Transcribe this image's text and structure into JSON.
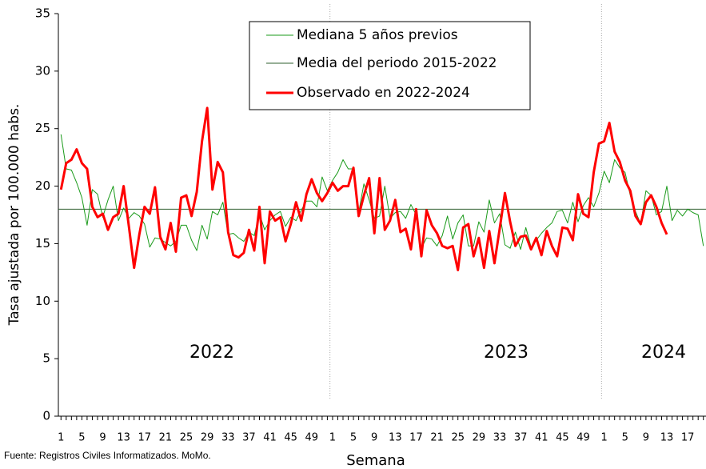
{
  "chart_data": {
    "type": "line",
    "ylabel": "Tasa ajustada por 100.000 habs.",
    "xlabel": "Semana",
    "source": "Fuente: Registros Civiles Informatizados. MoMo.",
    "year_labels": [
      "2022",
      "2023",
      "2024"
    ],
    "ylim": [
      0,
      35
    ],
    "yticks": [
      0,
      5,
      10,
      15,
      20,
      25,
      30,
      35
    ],
    "categories": [
      1,
      null,
      null,
      null,
      5,
      null,
      null,
      null,
      9,
      null,
      null,
      null,
      13,
      null,
      null,
      null,
      17,
      null,
      null,
      null,
      21,
      null,
      null,
      null,
      25,
      null,
      null,
      null,
      29,
      null,
      null,
      null,
      33,
      null,
      null,
      null,
      37,
      null,
      null,
      null,
      41,
      null,
      null,
      null,
      45,
      null,
      null,
      null,
      49,
      null,
      null,
      null,
      1,
      null,
      null,
      null,
      5,
      null,
      null,
      null,
      9,
      null,
      null,
      null,
      13,
      null,
      null,
      null,
      17,
      null,
      null,
      null,
      21,
      null,
      null,
      null,
      25,
      null,
      null,
      null,
      29,
      null,
      null,
      null,
      33,
      null,
      null,
      null,
      37,
      null,
      null,
      null,
      41,
      null,
      null,
      null,
      45,
      null,
      null,
      null,
      49,
      null,
      null,
      null,
      1,
      null,
      null,
      null,
      5,
      null,
      null,
      null,
      9,
      null,
      null,
      null,
      13,
      null,
      null,
      null,
      17,
      null,
      null,
      null
    ],
    "reference_line": {
      "name": "Media del periodo 2015-2022",
      "value": 18,
      "color": "#2f5f2f"
    },
    "series": [
      {
        "name": "Mediana 5 años previos",
        "color": "#1a9a1a",
        "width": 1,
        "values": [
          24.5,
          21.5,
          21.4,
          20.3,
          19.0,
          16.6,
          19.7,
          19.3,
          17.3,
          18.8,
          20.0,
          17.0,
          18.1,
          17.2,
          17.7,
          17.4,
          16.7,
          14.7,
          15.5,
          15.4,
          15.1,
          14.8,
          15.2,
          16.6,
          16.6,
          15.3,
          14.4,
          16.6,
          15.4,
          17.8,
          17.5,
          18.6,
          15.8,
          15.9,
          15.5,
          15.2,
          16.0,
          15.7,
          17.6,
          16.2,
          17.0,
          17.5,
          17.8,
          16.5,
          17.3,
          17.0,
          17.9,
          18.7,
          18.7,
          18.2,
          20.8,
          19.6,
          20.5,
          21.2,
          22.3,
          21.5,
          21.5,
          17.7,
          20.2,
          18.8,
          17.2,
          17.4,
          20.0,
          17.2,
          17.7,
          17.8,
          17.2,
          18.4,
          17.5,
          14.6,
          15.5,
          15.4,
          14.8,
          15.7,
          17.4,
          15.4,
          16.8,
          17.5,
          14.8,
          14.8,
          16.9,
          16.0,
          18.8,
          16.8,
          17.6,
          14.9,
          14.6,
          16.0,
          14.5,
          16.4,
          14.7,
          15.3,
          15.9,
          16.4,
          16.8,
          17.8,
          17.9,
          16.8,
          18.6,
          16.9,
          18.3,
          19.0,
          18.2,
          19.4,
          21.3,
          20.3,
          22.3,
          21.6,
          21.2,
          19.2,
          17.8,
          16.7,
          19.6,
          19.2,
          17.5,
          17.8,
          20.0,
          17.0,
          17.9,
          17.4,
          18.0,
          17.7,
          17.5,
          14.8
        ]
      },
      {
        "name": "Observado en 2022-2024",
        "color": "#ff0000",
        "width": 3,
        "values": [
          19.7,
          22.0,
          22.3,
          23.2,
          22.0,
          21.5,
          18.2,
          17.3,
          17.6,
          16.2,
          17.3,
          17.6,
          20.0,
          16.5,
          12.9,
          15.8,
          18.2,
          17.6,
          19.9,
          15.6,
          14.5,
          16.8,
          14.3,
          19.0,
          19.2,
          17.4,
          19.5,
          23.9,
          26.8,
          19.7,
          22.1,
          21.2,
          16.0,
          14.0,
          13.8,
          14.2,
          16.2,
          14.4,
          18.2,
          13.3,
          17.8,
          17.0,
          17.3,
          15.2,
          16.7,
          18.6,
          17.0,
          19.3,
          20.6,
          19.4,
          18.7,
          19.4,
          20.3,
          19.6,
          20.0,
          20.0,
          21.6,
          17.4,
          19.2,
          20.7,
          15.9,
          20.7,
          16.2,
          17.0,
          18.8,
          16.0,
          16.3,
          14.5,
          18.0,
          13.9,
          17.9,
          16.6,
          15.9,
          14.8,
          14.6,
          14.8,
          12.7,
          16.4,
          16.7,
          13.9,
          15.5,
          12.9,
          16.1,
          13.3,
          16.3,
          19.4,
          16.9,
          14.8,
          15.6,
          15.7,
          14.5,
          15.5,
          14.0,
          16.1,
          14.8,
          13.9,
          16.4,
          16.3,
          15.3,
          19.3,
          17.6,
          17.3,
          21.2,
          23.7,
          23.9,
          25.5,
          23.0,
          22.1,
          20.5,
          19.6,
          17.4,
          16.7,
          18.6,
          19.2,
          18.2,
          16.8,
          15.8,
          null,
          null,
          null,
          null,
          null,
          null,
          null
        ]
      }
    ]
  }
}
